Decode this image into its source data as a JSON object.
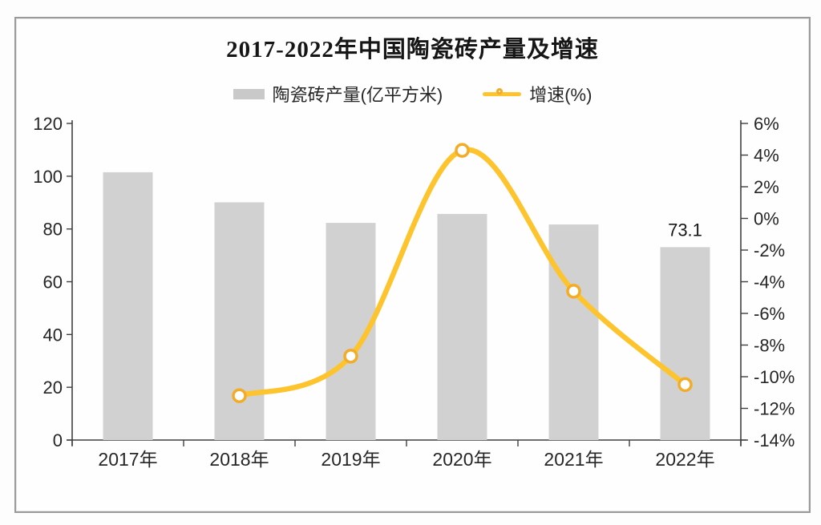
{
  "chart_data": {
    "type": "bar+line",
    "title": "2017-2022年中国陶瓷砖产量及增速",
    "categories": [
      "2017年",
      "2018年",
      "2019年",
      "2020年",
      "2021年",
      "2022年"
    ],
    "series": [
      {
        "name": "陶瓷砖产量(亿平方米)",
        "type": "bar",
        "axis": "left",
        "values": [
          101.5,
          90.1,
          82.3,
          85.7,
          81.7,
          73.1
        ],
        "data_labels": [
          null,
          null,
          null,
          null,
          null,
          "73.1"
        ],
        "color": "#d1d1d1"
      },
      {
        "name": "增速(%)",
        "type": "line",
        "axis": "right",
        "values": [
          null,
          -11.2,
          -8.7,
          4.3,
          -4.6,
          -10.5
        ],
        "color": "#fdc42d",
        "marker_fill": "#ffffff",
        "marker_stroke": "#f3ac27"
      }
    ],
    "left_axis": {
      "min": 0,
      "max": 120,
      "step": 20,
      "tick_labels": [
        "0",
        "20",
        "40",
        "60",
        "80",
        "100",
        "120"
      ]
    },
    "right_axis": {
      "min": -14,
      "max": 6,
      "step": 2,
      "tick_labels": [
        "6%",
        "4%",
        "2%",
        "0%",
        "-2%",
        "-4%",
        "-6%",
        "-8%",
        "-10%",
        "-12%",
        "-14%"
      ]
    },
    "grid": false,
    "legend_position": "top",
    "axis_color": "#3f3f3f",
    "label_color": "#262626"
  }
}
